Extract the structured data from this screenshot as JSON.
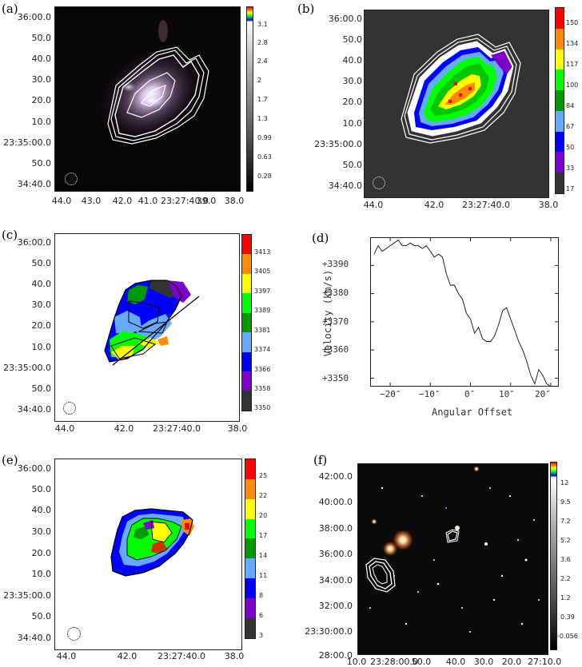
{
  "panels": {
    "a": {
      "label": "(a)",
      "yticks": [
        "36:00.0",
        "50.0",
        "40.0",
        "30.0",
        "20.0",
        "10.0",
        "23:35:00.0",
        "50.0",
        "34:40.0"
      ],
      "xticks": [
        "44.0",
        "43.0",
        "42.0",
        "41.0",
        "23:27:40.0",
        "39.0",
        "38.0"
      ],
      "cbar_labels": [
        "3.1",
        "2.8",
        "2.4",
        "2",
        "1.7",
        "1.3",
        "0.99",
        "0.63",
        "0.28"
      ]
    },
    "b": {
      "label": "(b)",
      "yticks": [
        "36:00.0",
        "50.0",
        "40.0",
        "30.0",
        "20.0",
        "10.0",
        "23:35:00.0",
        "50.0",
        "34:40.0"
      ],
      "xticks": [
        "44.0",
        "42.0",
        "23:27:40.0",
        "38.0"
      ],
      "cbar_labels": [
        "150",
        "134",
        "117",
        "100",
        "84",
        "67",
        "50",
        "33",
        "17"
      ],
      "cbar_colors": [
        "#ff0000",
        "#ff8c00",
        "#ffff00",
        "#00ff00",
        "#009900",
        "#66aaff",
        "#0000ff",
        "#7f00c8",
        "#333333"
      ]
    },
    "c": {
      "label": "(c)",
      "yticks": [
        "36:00.0",
        "50.0",
        "40.0",
        "30.0",
        "20.0",
        "10.0",
        "23:35:00.0",
        "50.0",
        "34:40.0"
      ],
      "xticks": [
        "44.0",
        "42.0",
        "23:27:40.0",
        "38.0"
      ],
      "cbar_labels": [
        "3413",
        "3405",
        "3397",
        "3389",
        "3381",
        "3374",
        "3366",
        "3358",
        "3350"
      ],
      "cbar_colors": [
        "#ff0000",
        "#ff8c00",
        "#ffff00",
        "#00ff00",
        "#009900",
        "#66aaff",
        "#0000ff",
        "#7f00c8",
        "#333333"
      ]
    },
    "d": {
      "label": "(d)",
      "ylabel": "Velocity (km/s)",
      "xlabel": "Angular Offset",
      "yticks": [
        "+3390",
        "+3380",
        "+3370",
        "+3360",
        "+3350"
      ],
      "xticks": [
        "−20″",
        "−10″",
        "0″",
        "10″",
        "20″"
      ]
    },
    "e": {
      "label": "(e)",
      "yticks": [
        "36:00.0",
        "50.0",
        "40.0",
        "30.0",
        "20.0",
        "10.0",
        "23:35:00.0",
        "50.0",
        "34:40.0"
      ],
      "xticks": [
        "44.0",
        "42.0",
        "23:27:40.0",
        "38.0"
      ],
      "cbar_labels": [
        "25",
        "22",
        "20",
        "17",
        "14",
        "11",
        "8",
        "6",
        "3"
      ],
      "cbar_colors": [
        "#ff0000",
        "#ff8c00",
        "#ffff00",
        "#00ff00",
        "#009900",
        "#66aaff",
        "#0000ff",
        "#7f00c8",
        "#333333"
      ]
    },
    "f": {
      "label": "(f)",
      "yticks": [
        "42:00.0",
        "40:00.0",
        "38:00.0",
        "36:00.0",
        "34:00.0",
        "32:00.0",
        "23:30:00.0",
        "28:00.0"
      ],
      "xticks": [
        "10.0",
        "23:28:00.0",
        "50.0",
        "40.0",
        "30.0",
        "20.0",
        "27:10.0"
      ],
      "cbar_labels": [
        "12",
        "9.5",
        "7.2",
        "5.2",
        "3.6",
        "2.2",
        "1.2",
        "0.39",
        "-0.056"
      ]
    }
  },
  "chart_data": [
    {
      "panel": "(d)",
      "type": "line",
      "xlabel": "Angular Offset",
      "ylabel": "Velocity (km/s)",
      "xlim": [
        -25,
        22
      ],
      "ylim": [
        3347,
        3400
      ],
      "x": [
        -24,
        -23,
        -22,
        -21,
        -20,
        -19,
        -18,
        -17,
        -16,
        -15,
        -14,
        -13,
        -12,
        -11,
        -10,
        -9,
        -8,
        -7,
        -6,
        -5,
        -4,
        -3,
        -2,
        -1,
        0,
        1,
        2,
        3,
        4,
        5,
        6,
        7,
        8,
        9,
        10,
        11,
        12,
        13,
        14,
        15,
        16,
        17,
        18,
        19,
        20,
        21,
        22
      ],
      "y": [
        3394,
        3397,
        3395,
        3396,
        3397,
        3398,
        3399,
        3397,
        3397,
        3398,
        3397,
        3397,
        3396,
        3397,
        3395,
        3393,
        3394,
        3393,
        3387,
        3383,
        3383,
        3380,
        3378,
        3373,
        3371,
        3366,
        3368,
        3364,
        3363,
        3363,
        3365,
        3369,
        3374,
        3375,
        3371,
        3367,
        3363,
        3360,
        3356,
        3351,
        3348,
        3353,
        3351,
        3348,
        3347,
        3347,
        3347
      ]
    }
  ]
}
